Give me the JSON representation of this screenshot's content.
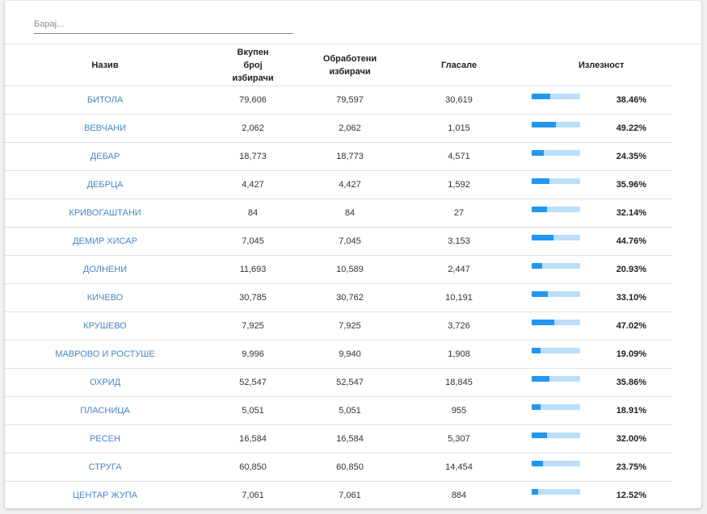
{
  "search": {
    "placeholder": "Барај...",
    "value": ""
  },
  "headers": {
    "name": "Назив",
    "total_voters": "Вкупен број избирачи",
    "processed_voters": "Обработени избирачи",
    "voted": "Гласале",
    "turnout": "Излезност"
  },
  "colors": {
    "bar_fill": "#2196f3",
    "bar_track": "#bbdefb",
    "link": "#4a86c8"
  },
  "rows": [
    {
      "name": "БИТОЛА",
      "total": "79,606",
      "processed": "79,597",
      "voted": "30,619",
      "turnout": "38.46%",
      "turnout_value": 38.46
    },
    {
      "name": "ВЕВЧАНИ",
      "total": "2,062",
      "processed": "2,062",
      "voted": "1,015",
      "turnout": "49.22%",
      "turnout_value": 49.22
    },
    {
      "name": "ДЕБАР",
      "total": "18,773",
      "processed": "18,773",
      "voted": "4,571",
      "turnout": "24.35%",
      "turnout_value": 24.35
    },
    {
      "name": "ДЕБРЦА",
      "total": "4,427",
      "processed": "4,427",
      "voted": "1,592",
      "turnout": "35.96%",
      "turnout_value": 35.96
    },
    {
      "name": "КРИВОГАШТАНИ",
      "total": "84",
      "processed": "84",
      "voted": "27",
      "turnout": "32.14%",
      "turnout_value": 32.14
    },
    {
      "name": "ДЕМИР ХИСАР",
      "total": "7,045",
      "processed": "7,045",
      "voted": "3,153",
      "turnout": "44.76%",
      "turnout_value": 44.76
    },
    {
      "name": "ДОЛНЕНИ",
      "total": "11,693",
      "processed": "10,589",
      "voted": "2,447",
      "turnout": "20.93%",
      "turnout_value": 20.93
    },
    {
      "name": "КИЧЕВО",
      "total": "30,785",
      "processed": "30,762",
      "voted": "10,191",
      "turnout": "33.10%",
      "turnout_value": 33.1
    },
    {
      "name": "КРУШЕВО",
      "total": "7,925",
      "processed": "7,925",
      "voted": "3,726",
      "turnout": "47.02%",
      "turnout_value": 47.02
    },
    {
      "name": "МАВРОВО И РОСТУШЕ",
      "total": "9,996",
      "processed": "9,940",
      "voted": "1,908",
      "turnout": "19.09%",
      "turnout_value": 19.09
    },
    {
      "name": "ОХРИД",
      "total": "52,547",
      "processed": "52,547",
      "voted": "18,845",
      "turnout": "35.86%",
      "turnout_value": 35.86
    },
    {
      "name": "ПЛАСНИЦА",
      "total": "5,051",
      "processed": "5,051",
      "voted": "955",
      "turnout": "18.91%",
      "turnout_value": 18.91
    },
    {
      "name": "РЕСЕН",
      "total": "16,584",
      "processed": "16,584",
      "voted": "5,307",
      "turnout": "32.00%",
      "turnout_value": 32.0
    },
    {
      "name": "СТРУГА",
      "total": "60,850",
      "processed": "60,850",
      "voted": "14,454",
      "turnout": "23.75%",
      "turnout_value": 23.75
    },
    {
      "name": "ЦЕНТАР ЖУПА",
      "total": "7,061",
      "processed": "7,061",
      "voted": "884",
      "turnout": "12.52%",
      "turnout_value": 12.52
    }
  ]
}
